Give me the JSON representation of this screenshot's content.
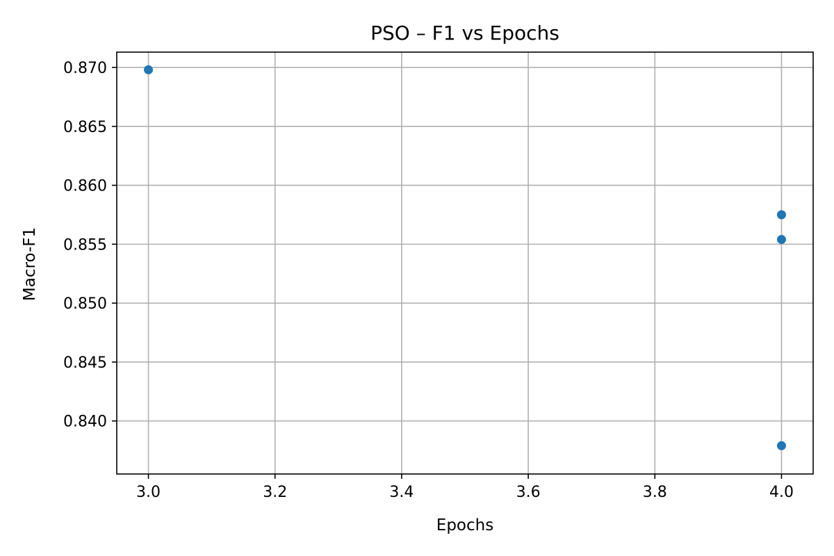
{
  "chart_data": {
    "type": "scatter",
    "title": "PSO – F1 vs Epochs",
    "xlabel": "Epochs",
    "ylabel": "Macro-F1",
    "xlim": [
      2.95,
      4.05
    ],
    "ylim": [
      0.8355,
      0.8713
    ],
    "x_ticks": [
      "3.0",
      "3.2",
      "3.4",
      "3.6",
      "3.8",
      "4.0"
    ],
    "y_ticks": [
      "0.840",
      "0.845",
      "0.850",
      "0.855",
      "0.860",
      "0.865",
      "0.870"
    ],
    "grid": true,
    "legend": "none",
    "marker_color": "#1f77b4",
    "points": [
      {
        "x": 3.0,
        "y": 0.8698
      },
      {
        "x": 4.0,
        "y": 0.8575
      },
      {
        "x": 4.0,
        "y": 0.8554
      },
      {
        "x": 4.0,
        "y": 0.8379
      }
    ]
  }
}
